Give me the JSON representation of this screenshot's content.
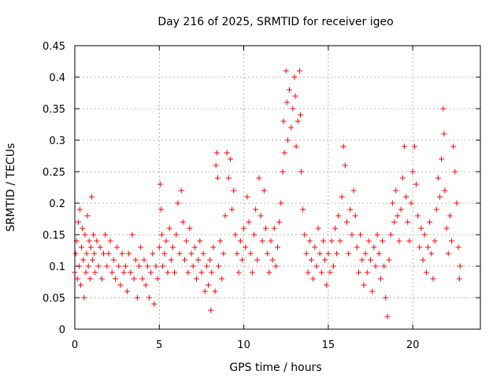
{
  "chart_data": {
    "type": "scatter",
    "title": "Day 216 of 2025, SRMTID for receiver igeo",
    "xlabel": "GPS time / hours",
    "ylabel": "SRMTID / TECUs",
    "xlim": [
      0,
      24
    ],
    "ylim": [
      0,
      0.45
    ],
    "xticks": [
      0,
      5,
      10,
      15,
      20
    ],
    "xtick_labels": [
      "0",
      "5",
      "10",
      "15",
      "20"
    ],
    "yticks": [
      0,
      0.05,
      0.1,
      0.15,
      0.2,
      0.25,
      0.3,
      0.35,
      0.4,
      0.45
    ],
    "ytick_labels": [
      "0",
      "0.05",
      "0.1",
      "0.15",
      "0.2",
      "0.25",
      "0.3",
      "0.35",
      "0.4",
      "0.45"
    ],
    "grid": true,
    "marker": "+",
    "series": [
      {
        "name": "SRMTID",
        "color": "#ff0000",
        "points": [
          [
            0.0,
            0.09
          ],
          [
            0.05,
            0.12
          ],
          [
            0.1,
            0.14
          ],
          [
            0.15,
            0.08
          ],
          [
            0.2,
            0.17
          ],
          [
            0.25,
            0.1
          ],
          [
            0.3,
            0.19
          ],
          [
            0.35,
            0.07
          ],
          [
            0.4,
            0.13
          ],
          [
            0.45,
            0.16
          ],
          [
            0.5,
            0.11
          ],
          [
            0.55,
            0.05
          ],
          [
            0.6,
            0.15
          ],
          [
            0.65,
            0.09
          ],
          [
            0.7,
            0.12
          ],
          [
            0.75,
            0.18
          ],
          [
            0.8,
            0.1
          ],
          [
            0.85,
            0.14
          ],
          [
            0.9,
            0.08
          ],
          [
            0.95,
            0.13
          ],
          [
            1.0,
            0.21
          ],
          [
            1.05,
            0.11
          ],
          [
            1.1,
            0.15
          ],
          [
            1.15,
            0.12
          ],
          [
            1.2,
            0.09
          ],
          [
            1.3,
            0.14
          ],
          [
            1.4,
            0.1
          ],
          [
            1.5,
            0.13
          ],
          [
            1.6,
            0.08
          ],
          [
            1.7,
            0.12
          ],
          [
            1.8,
            0.15
          ],
          [
            1.9,
            0.1
          ],
          [
            2.0,
            0.12
          ],
          [
            2.1,
            0.14
          ],
          [
            2.2,
            0.09
          ],
          [
            2.3,
            0.11
          ],
          [
            2.4,
            0.08
          ],
          [
            2.5,
            0.13
          ],
          [
            2.6,
            0.1
          ],
          [
            2.7,
            0.07
          ],
          [
            2.8,
            0.12
          ],
          [
            2.9,
            0.09
          ],
          [
            3.0,
            0.1
          ],
          [
            3.1,
            0.06
          ],
          [
            3.2,
            0.12
          ],
          [
            3.3,
            0.09
          ],
          [
            3.4,
            0.15
          ],
          [
            3.5,
            0.08
          ],
          [
            3.6,
            0.11
          ],
          [
            3.7,
            0.05
          ],
          [
            3.8,
            0.1
          ],
          [
            3.9,
            0.13
          ],
          [
            4.0,
            0.08
          ],
          [
            4.1,
            0.11
          ],
          [
            4.2,
            0.07
          ],
          [
            4.3,
            0.1
          ],
          [
            4.4,
            0.05
          ],
          [
            4.5,
            0.09
          ],
          [
            4.6,
            0.12
          ],
          [
            4.7,
            0.04
          ],
          [
            4.8,
            0.1
          ],
          [
            4.9,
            0.08
          ],
          [
            5.0,
            0.13
          ],
          [
            5.05,
            0.23
          ],
          [
            5.1,
            0.19
          ],
          [
            5.15,
            0.15
          ],
          [
            5.2,
            0.1
          ],
          [
            5.3,
            0.12
          ],
          [
            5.4,
            0.14
          ],
          [
            5.5,
            0.09
          ],
          [
            5.6,
            0.16
          ],
          [
            5.7,
            0.11
          ],
          [
            5.8,
            0.13
          ],
          [
            5.9,
            0.09
          ],
          [
            6.0,
            0.15
          ],
          [
            6.1,
            0.2
          ],
          [
            6.2,
            0.12
          ],
          [
            6.3,
            0.22
          ],
          [
            6.4,
            0.17
          ],
          [
            6.5,
            0.11
          ],
          [
            6.6,
            0.14
          ],
          [
            6.7,
            0.09
          ],
          [
            6.8,
            0.16
          ],
          [
            6.9,
            0.12
          ],
          [
            7.0,
            0.1
          ],
          [
            7.1,
            0.13
          ],
          [
            7.2,
            0.08
          ],
          [
            7.3,
            0.11
          ],
          [
            7.4,
            0.14
          ],
          [
            7.5,
            0.09
          ],
          [
            7.6,
            0.12
          ],
          [
            7.7,
            0.06
          ],
          [
            7.8,
            0.1
          ],
          [
            7.9,
            0.07
          ],
          [
            8.0,
            0.11
          ],
          [
            8.05,
            0.03
          ],
          [
            8.1,
            0.09
          ],
          [
            8.2,
            0.13
          ],
          [
            8.3,
            0.06
          ],
          [
            8.35,
            0.26
          ],
          [
            8.4,
            0.28
          ],
          [
            8.45,
            0.24
          ],
          [
            8.5,
            0.1
          ],
          [
            8.6,
            0.14
          ],
          [
            8.7,
            0.08
          ],
          [
            8.8,
            0.12
          ],
          [
            8.9,
            0.18
          ],
          [
            9.0,
            0.28
          ],
          [
            9.1,
            0.24
          ],
          [
            9.2,
            0.27
          ],
          [
            9.3,
            0.19
          ],
          [
            9.4,
            0.22
          ],
          [
            9.5,
            0.15
          ],
          [
            9.6,
            0.12
          ],
          [
            9.7,
            0.09
          ],
          [
            9.8,
            0.14
          ],
          [
            9.9,
            0.11
          ],
          [
            10.0,
            0.16
          ],
          [
            10.1,
            0.13
          ],
          [
            10.2,
            0.21
          ],
          [
            10.3,
            0.17
          ],
          [
            10.4,
            0.12
          ],
          [
            10.5,
            0.09
          ],
          [
            10.6,
            0.15
          ],
          [
            10.7,
            0.19
          ],
          [
            10.8,
            0.11
          ],
          [
            10.9,
            0.24
          ],
          [
            11.0,
            0.18
          ],
          [
            11.1,
            0.14
          ],
          [
            11.2,
            0.22
          ],
          [
            11.3,
            0.16
          ],
          [
            11.4,
            0.12
          ],
          [
            11.5,
            0.09
          ],
          [
            11.6,
            0.14
          ],
          [
            11.7,
            0.11
          ],
          [
            11.8,
            0.16
          ],
          [
            11.9,
            0.1
          ],
          [
            12.0,
            0.13
          ],
          [
            12.1,
            0.17
          ],
          [
            12.2,
            0.2
          ],
          [
            12.3,
            0.25
          ],
          [
            12.35,
            0.33
          ],
          [
            12.4,
            0.28
          ],
          [
            12.5,
            0.41
          ],
          [
            12.55,
            0.36
          ],
          [
            12.6,
            0.3
          ],
          [
            12.7,
            0.38
          ],
          [
            12.8,
            0.32
          ],
          [
            12.9,
            0.35
          ],
          [
            13.0,
            0.4
          ],
          [
            13.05,
            0.37
          ],
          [
            13.1,
            0.29
          ],
          [
            13.2,
            0.33
          ],
          [
            13.3,
            0.41
          ],
          [
            13.35,
            0.34
          ],
          [
            13.4,
            0.25
          ],
          [
            13.5,
            0.19
          ],
          [
            13.6,
            0.15
          ],
          [
            13.7,
            0.12
          ],
          [
            13.8,
            0.09
          ],
          [
            13.9,
            0.14
          ],
          [
            14.0,
            0.11
          ],
          [
            14.1,
            0.08
          ],
          [
            14.2,
            0.13
          ],
          [
            14.3,
            0.1
          ],
          [
            14.4,
            0.16
          ],
          [
            14.5,
            0.12
          ],
          [
            14.6,
            0.09
          ],
          [
            14.7,
            0.14
          ],
          [
            14.8,
            0.11
          ],
          [
            14.9,
            0.07
          ],
          [
            15.0,
            0.12
          ],
          [
            15.1,
            0.09
          ],
          [
            15.2,
            0.14
          ],
          [
            15.3,
            0.1
          ],
          [
            15.4,
            0.16
          ],
          [
            15.5,
            0.12
          ],
          [
            15.6,
            0.18
          ],
          [
            15.7,
            0.14
          ],
          [
            15.8,
            0.21
          ],
          [
            15.9,
            0.29
          ],
          [
            16.0,
            0.26
          ],
          [
            16.1,
            0.17
          ],
          [
            16.2,
            0.12
          ],
          [
            16.3,
            0.19
          ],
          [
            16.4,
            0.15
          ],
          [
            16.5,
            0.22
          ],
          [
            16.6,
            0.18
          ],
          [
            16.7,
            0.13
          ],
          [
            16.8,
            0.09
          ],
          [
            16.9,
            0.15
          ],
          [
            17.0,
            0.11
          ],
          [
            17.1,
            0.07
          ],
          [
            17.2,
            0.12
          ],
          [
            17.3,
            0.09
          ],
          [
            17.4,
            0.14
          ],
          [
            17.5,
            0.11
          ],
          [
            17.6,
            0.06
          ],
          [
            17.7,
            0.13
          ],
          [
            17.8,
            0.1
          ],
          [
            17.9,
            0.15
          ],
          [
            18.0,
            0.12
          ],
          [
            18.1,
            0.08
          ],
          [
            18.2,
            0.14
          ],
          [
            18.3,
            0.1
          ],
          [
            18.4,
            0.05
          ],
          [
            18.5,
            0.02
          ],
          [
            18.6,
            0.11
          ],
          [
            18.7,
            0.15
          ],
          [
            18.8,
            0.2
          ],
          [
            18.9,
            0.17
          ],
          [
            19.0,
            0.22
          ],
          [
            19.1,
            0.18
          ],
          [
            19.2,
            0.14
          ],
          [
            19.3,
            0.19
          ],
          [
            19.4,
            0.24
          ],
          [
            19.5,
            0.29
          ],
          [
            19.6,
            0.21
          ],
          [
            19.7,
            0.17
          ],
          [
            19.8,
            0.14
          ],
          [
            19.9,
            0.2
          ],
          [
            20.0,
            0.25
          ],
          [
            20.1,
            0.29
          ],
          [
            20.2,
            0.23
          ],
          [
            20.3,
            0.18
          ],
          [
            20.4,
            0.13
          ],
          [
            20.5,
            0.16
          ],
          [
            20.6,
            0.11
          ],
          [
            20.7,
            0.15
          ],
          [
            20.8,
            0.09
          ],
          [
            20.9,
            0.13
          ],
          [
            21.0,
            0.17
          ],
          [
            21.1,
            0.12
          ],
          [
            21.2,
            0.08
          ],
          [
            21.3,
            0.14
          ],
          [
            21.4,
            0.19
          ],
          [
            21.5,
            0.24
          ],
          [
            21.6,
            0.21
          ],
          [
            21.7,
            0.27
          ],
          [
            21.8,
            0.35
          ],
          [
            21.85,
            0.31
          ],
          [
            21.9,
            0.22
          ],
          [
            22.0,
            0.16
          ],
          [
            22.1,
            0.12
          ],
          [
            22.2,
            0.18
          ],
          [
            22.3,
            0.14
          ],
          [
            22.4,
            0.29
          ],
          [
            22.5,
            0.25
          ],
          [
            22.6,
            0.2
          ],
          [
            22.7,
            0.13
          ],
          [
            22.75,
            0.08
          ],
          [
            22.8,
            0.1
          ]
        ]
      }
    ]
  }
}
